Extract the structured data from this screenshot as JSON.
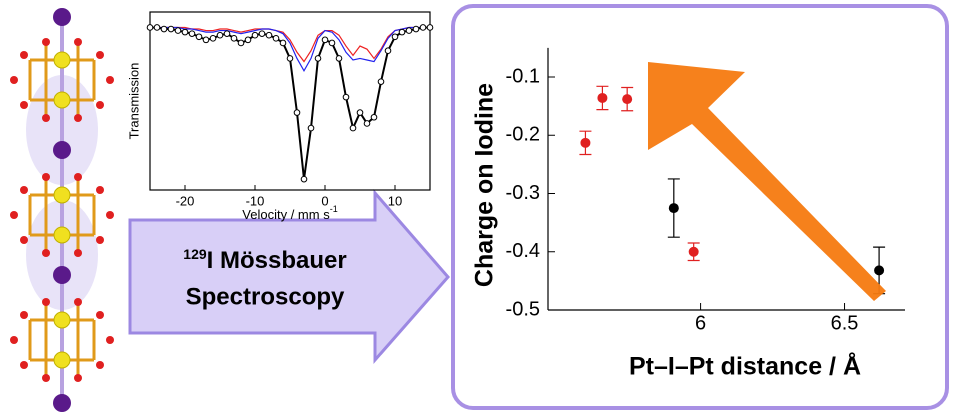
{
  "chart_data": [
    {
      "type": "line",
      "x": [
        -25,
        -24,
        -23,
        -22,
        -21,
        -20,
        -19,
        -18,
        -17,
        -16,
        -15,
        -14,
        -13,
        -12,
        -11,
        -10,
        -9,
        -8,
        -7,
        -6,
        -5,
        -4,
        -3,
        -2,
        -1,
        0,
        1,
        2,
        3,
        4,
        5,
        6,
        7,
        8,
        9,
        10,
        11,
        12,
        13,
        14,
        15
      ],
      "series": [
        {
          "color": "#000000",
          "markers": true,
          "values": [
            1.0,
            1.0,
            0.99,
            0.99,
            0.98,
            0.97,
            0.96,
            0.94,
            0.92,
            0.93,
            0.95,
            0.96,
            0.93,
            0.9,
            0.92,
            0.95,
            0.96,
            0.95,
            0.93,
            0.9,
            0.8,
            0.45,
            0.02,
            0.35,
            0.8,
            0.92,
            0.9,
            0.8,
            0.55,
            0.35,
            0.45,
            0.38,
            0.42,
            0.65,
            0.85,
            0.94,
            0.97,
            0.98,
            0.99,
            1.0,
            1.0
          ]
        },
        {
          "color": "#2222ee",
          "markers": false,
          "values": [
            1.0,
            1.0,
            1.0,
            1.0,
            1.0,
            0.99,
            0.99,
            0.98,
            0.97,
            0.97,
            0.98,
            0.98,
            0.97,
            0.96,
            0.97,
            0.98,
            0.99,
            0.99,
            0.98,
            0.96,
            0.9,
            0.8,
            0.72,
            0.8,
            0.93,
            0.98,
            0.97,
            0.92,
            0.84,
            0.79,
            0.8,
            0.79,
            0.78,
            0.85,
            0.93,
            0.98,
            0.99,
            1.0,
            1.0,
            1.0,
            1.0
          ]
        },
        {
          "color": "#ee2222",
          "markers": false,
          "values": [
            1.0,
            1.0,
            1.0,
            1.0,
            1.0,
            1.0,
            0.99,
            0.99,
            0.98,
            0.98,
            0.99,
            0.99,
            0.98,
            0.97,
            0.98,
            0.99,
            0.99,
            0.99,
            0.98,
            0.97,
            0.92,
            0.84,
            0.78,
            0.85,
            0.95,
            0.98,
            0.98,
            0.95,
            0.88,
            0.82,
            0.88,
            0.86,
            0.8,
            0.86,
            0.94,
            0.98,
            0.99,
            1.0,
            1.0,
            1.0,
            1.0
          ]
        }
      ],
      "xlim": [
        -25,
        15
      ],
      "xticks": [
        -20,
        -10,
        0,
        10
      ],
      "ylim": [
        -0.05,
        1.1
      ],
      "xlabel": "Velocity / mm s",
      "xlabel_superscript": "-1",
      "ylabel": "Transmission"
    },
    {
      "type": "scatter",
      "series": [
        {
          "color": "#e02020",
          "x": [
            5.6,
            5.659,
            5.745,
            5.976
          ],
          "values": [
            -0.213,
            -0.136,
            -0.138,
            -0.4
          ],
          "errors": [
            0.02,
            0.02,
            0.02,
            0.015
          ]
        },
        {
          "color": "#000000",
          "x": [
            5.907,
            6.62
          ],
          "values": [
            -0.325,
            -0.432
          ],
          "errors": [
            0.05,
            0.04
          ]
        }
      ],
      "xlim": [
        5.47,
        6.71
      ],
      "xticks": [
        6,
        6.5
      ],
      "ylim": [
        -0.5,
        -0.05
      ],
      "yticks": [
        -0.1,
        -0.2,
        -0.3,
        -0.4,
        -0.5
      ],
      "xlabel": "Pt–I–Pt distance / Å",
      "ylabel": "Charge on Iodine"
    }
  ],
  "banner": {
    "superscript": "129",
    "line1": "I Mössbauer",
    "line2": "Spectroscopy"
  }
}
